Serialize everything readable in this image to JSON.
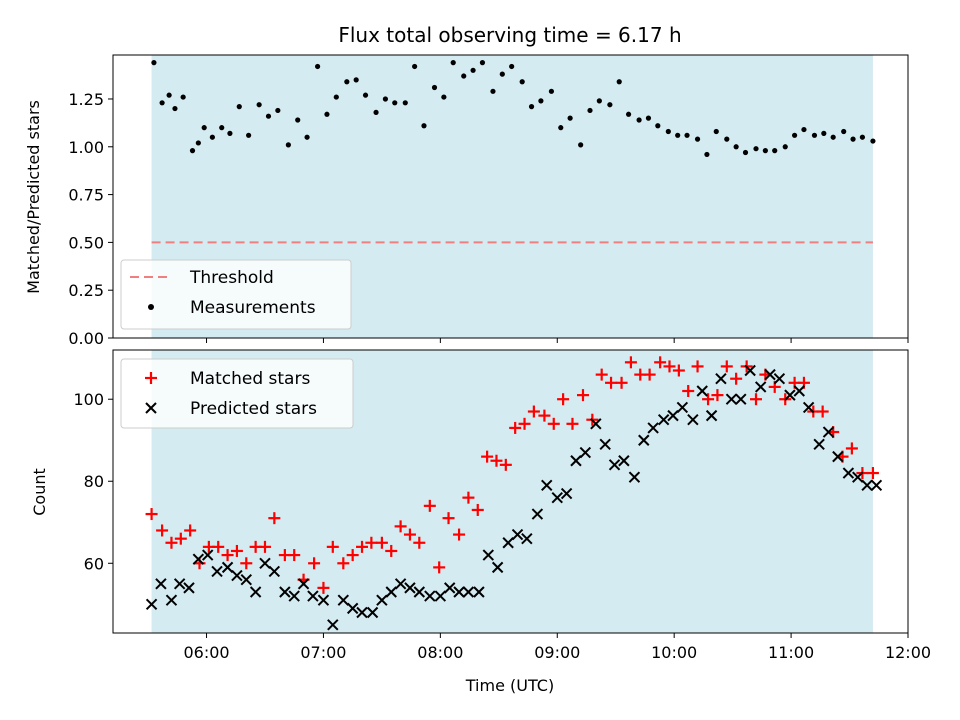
{
  "figure": {
    "title": "Flux total observing time = 6.17 h",
    "xlabel": "Time (UTC)",
    "x_tick_labels": [
      "06:00",
      "07:00",
      "08:00",
      "09:00",
      "10:00",
      "11:00",
      "12:00"
    ]
  },
  "colors": {
    "observing_band": "#d3ebf1",
    "threshold": "#f08080",
    "measurements": "#000000",
    "matched": "#ff0000",
    "predicted": "#000000"
  },
  "chart_data": [
    {
      "type": "scatter",
      "panel": "top",
      "title": "Flux total observing time = 6.17 h",
      "xlabel": "",
      "ylabel": "Matched/Predicted stars",
      "x_unit": "hours UTC",
      "xlim": [
        5.2,
        12.0
      ],
      "ylim": [
        0.0,
        1.48
      ],
      "y_ticks": [
        0.0,
        0.25,
        0.5,
        0.75,
        1.0,
        1.25
      ],
      "y_tick_labels": [
        "0.00",
        "0.25",
        "0.50",
        "0.75",
        "1.00",
        "1.25"
      ],
      "shaded_span": [
        5.53,
        11.7
      ],
      "threshold": {
        "name": "Threshold",
        "value": 0.5
      },
      "legend": {
        "position": "lower-left",
        "entries": [
          "Threshold",
          "Measurements"
        ]
      },
      "series": [
        {
          "name": "Measurements",
          "marker": "dot",
          "x": [
            5.55,
            5.62,
            5.68,
            5.73,
            5.8,
            5.88,
            5.93,
            5.98,
            6.05,
            6.13,
            6.2,
            6.28,
            6.36,
            6.45,
            6.53,
            6.61,
            6.7,
            6.78,
            6.86,
            6.95,
            7.03,
            7.11,
            7.2,
            7.28,
            7.36,
            7.45,
            7.53,
            7.61,
            7.7,
            7.78,
            7.86,
            7.95,
            8.03,
            8.11,
            8.2,
            8.28,
            8.36,
            8.45,
            8.53,
            8.61,
            8.7,
            8.78,
            8.86,
            8.95,
            9.03,
            9.11,
            9.2,
            9.28,
            9.36,
            9.45,
            9.53,
            9.61,
            9.7,
            9.78,
            9.86,
            9.95,
            10.03,
            10.11,
            10.2,
            10.28,
            10.36,
            10.45,
            10.53,
            10.61,
            10.7,
            10.78,
            10.86,
            10.95,
            11.03,
            11.11,
            11.2,
            11.28,
            11.36,
            11.45,
            11.53,
            11.61,
            11.7
          ],
          "y": [
            1.44,
            1.23,
            1.27,
            1.2,
            1.26,
            0.98,
            1.02,
            1.1,
            1.05,
            1.1,
            1.07,
            1.21,
            1.06,
            1.22,
            1.16,
            1.19,
            1.01,
            1.14,
            1.05,
            1.42,
            1.17,
            1.26,
            1.34,
            1.35,
            1.27,
            1.18,
            1.25,
            1.23,
            1.23,
            1.42,
            1.11,
            1.31,
            1.26,
            1.44,
            1.37,
            1.4,
            1.44,
            1.29,
            1.38,
            1.42,
            1.34,
            1.21,
            1.24,
            1.29,
            1.1,
            1.15,
            1.01,
            1.19,
            1.24,
            1.22,
            1.34,
            1.17,
            1.14,
            1.15,
            1.11,
            1.08,
            1.06,
            1.06,
            1.04,
            0.96,
            1.08,
            1.04,
            1.0,
            0.97,
            0.99,
            0.98,
            0.98,
            1.0,
            1.06,
            1.09,
            1.06,
            1.07,
            1.05,
            1.08,
            1.04,
            1.05,
            1.03
          ]
        }
      ]
    },
    {
      "type": "scatter",
      "panel": "bottom",
      "xlabel": "Time (UTC)",
      "ylabel": "Count",
      "x_unit": "hours UTC",
      "xlim": [
        5.2,
        12.0
      ],
      "ylim": [
        43,
        112
      ],
      "y_ticks": [
        60,
        80,
        100
      ],
      "y_tick_labels": [
        "60",
        "80",
        "100"
      ],
      "shaded_span": [
        5.53,
        11.7
      ],
      "legend": {
        "position": "upper-left",
        "entries": [
          "Matched stars",
          "Predicted stars"
        ]
      },
      "series": [
        {
          "name": "Matched stars",
          "marker": "plus",
          "x": [
            5.53,
            5.62,
            5.7,
            5.78,
            5.86,
            5.94,
            6.02,
            6.1,
            6.18,
            6.26,
            6.34,
            6.42,
            6.5,
            6.58,
            6.67,
            6.75,
            6.83,
            6.92,
            7.0,
            7.08,
            7.17,
            7.25,
            7.33,
            7.41,
            7.5,
            7.58,
            7.66,
            7.74,
            7.82,
            7.91,
            7.99,
            8.07,
            8.16,
            8.24,
            8.32,
            8.4,
            8.48,
            8.56,
            8.64,
            8.72,
            8.8,
            8.89,
            8.97,
            9.05,
            9.13,
            9.22,
            9.3,
            9.38,
            9.46,
            9.55,
            9.63,
            9.71,
            9.79,
            9.88,
            9.96,
            10.04,
            10.12,
            10.2,
            10.29,
            10.37,
            10.45,
            10.53,
            10.62,
            10.7,
            10.78,
            10.86,
            10.95,
            11.03,
            11.11,
            11.19,
            11.27,
            11.36,
            11.44,
            11.52,
            11.61,
            11.7
          ],
          "y": [
            72,
            68,
            65,
            66,
            68,
            60,
            64,
            64,
            62,
            63,
            60,
            64,
            64,
            71,
            62,
            62,
            56,
            60,
            54,
            64,
            60,
            62,
            64,
            65,
            65,
            63,
            69,
            67,
            65,
            74,
            59,
            71,
            67,
            76,
            73,
            86,
            85,
            84,
            93,
            94,
            97,
            96,
            94,
            100,
            94,
            101,
            95,
            106,
            104,
            104,
            109,
            106,
            106,
            109,
            108,
            107,
            102,
            108,
            100,
            101,
            108,
            105,
            108,
            100,
            106,
            103,
            100,
            104,
            104,
            97,
            97,
            92,
            86,
            88,
            82,
            82
          ]
        },
        {
          "name": "Predicted stars",
          "marker": "x",
          "x": [
            5.53,
            5.61,
            5.7,
            5.77,
            5.85,
            5.93,
            6.01,
            6.09,
            6.18,
            6.26,
            6.34,
            6.42,
            6.5,
            6.58,
            6.67,
            6.75,
            6.83,
            6.91,
            7.0,
            7.08,
            7.17,
            7.25,
            7.33,
            7.42,
            7.5,
            7.58,
            7.66,
            7.74,
            7.82,
            7.91,
            8.0,
            8.08,
            8.16,
            8.24,
            8.33,
            8.41,
            8.49,
            8.58,
            8.66,
            8.74,
            8.83,
            8.91,
            9.0,
            9.08,
            9.16,
            9.24,
            9.33,
            9.41,
            9.49,
            9.57,
            9.66,
            9.74,
            9.82,
            9.91,
            9.99,
            10.07,
            10.16,
            10.24,
            10.32,
            10.4,
            10.49,
            10.57,
            10.65,
            10.74,
            10.82,
            10.9,
            10.99,
            11.07,
            11.15,
            11.24,
            11.32,
            11.4,
            11.49,
            11.57,
            11.65,
            11.73
          ],
          "y": [
            50,
            55,
            51,
            55,
            54,
            61,
            62,
            58,
            59,
            57,
            56,
            53,
            60,
            58,
            53,
            52,
            55,
            52,
            51,
            45,
            51,
            49,
            48,
            48,
            51,
            53,
            55,
            54,
            53,
            52,
            52,
            54,
            53,
            53,
            53,
            62,
            59,
            65,
            67,
            66,
            72,
            79,
            76,
            77,
            85,
            87,
            94,
            89,
            84,
            85,
            81,
            90,
            93,
            95,
            96,
            98,
            95,
            102,
            96,
            105,
            100,
            100,
            107,
            103,
            106,
            105,
            101,
            102,
            98,
            89,
            92,
            86,
            82,
            81,
            79,
            79
          ]
        }
      ]
    }
  ]
}
